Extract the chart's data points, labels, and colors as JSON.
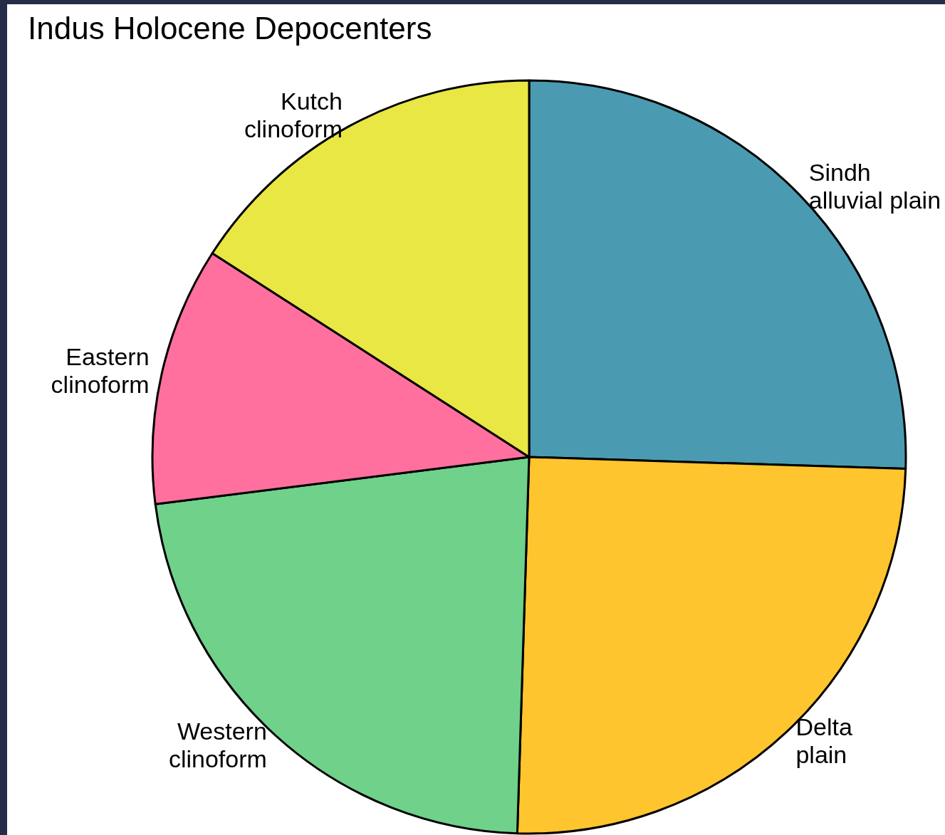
{
  "chart_data": {
    "type": "pie",
    "title": "Indus Holocene Depocenters",
    "categories": [
      "Sindh\nalluvial plain",
      "Delta\nplain",
      "Western\nclinoform",
      "Eastern\nclinoform",
      "Kutch\nclinoform"
    ],
    "values": [
      25.5,
      25.0,
      22.5,
      11.1,
      15.9
    ],
    "colors": [
      "#4a9bb1",
      "#fec52e",
      "#6fd18a",
      "#ff709e",
      "#e8e744"
    ],
    "legend": false
  }
}
